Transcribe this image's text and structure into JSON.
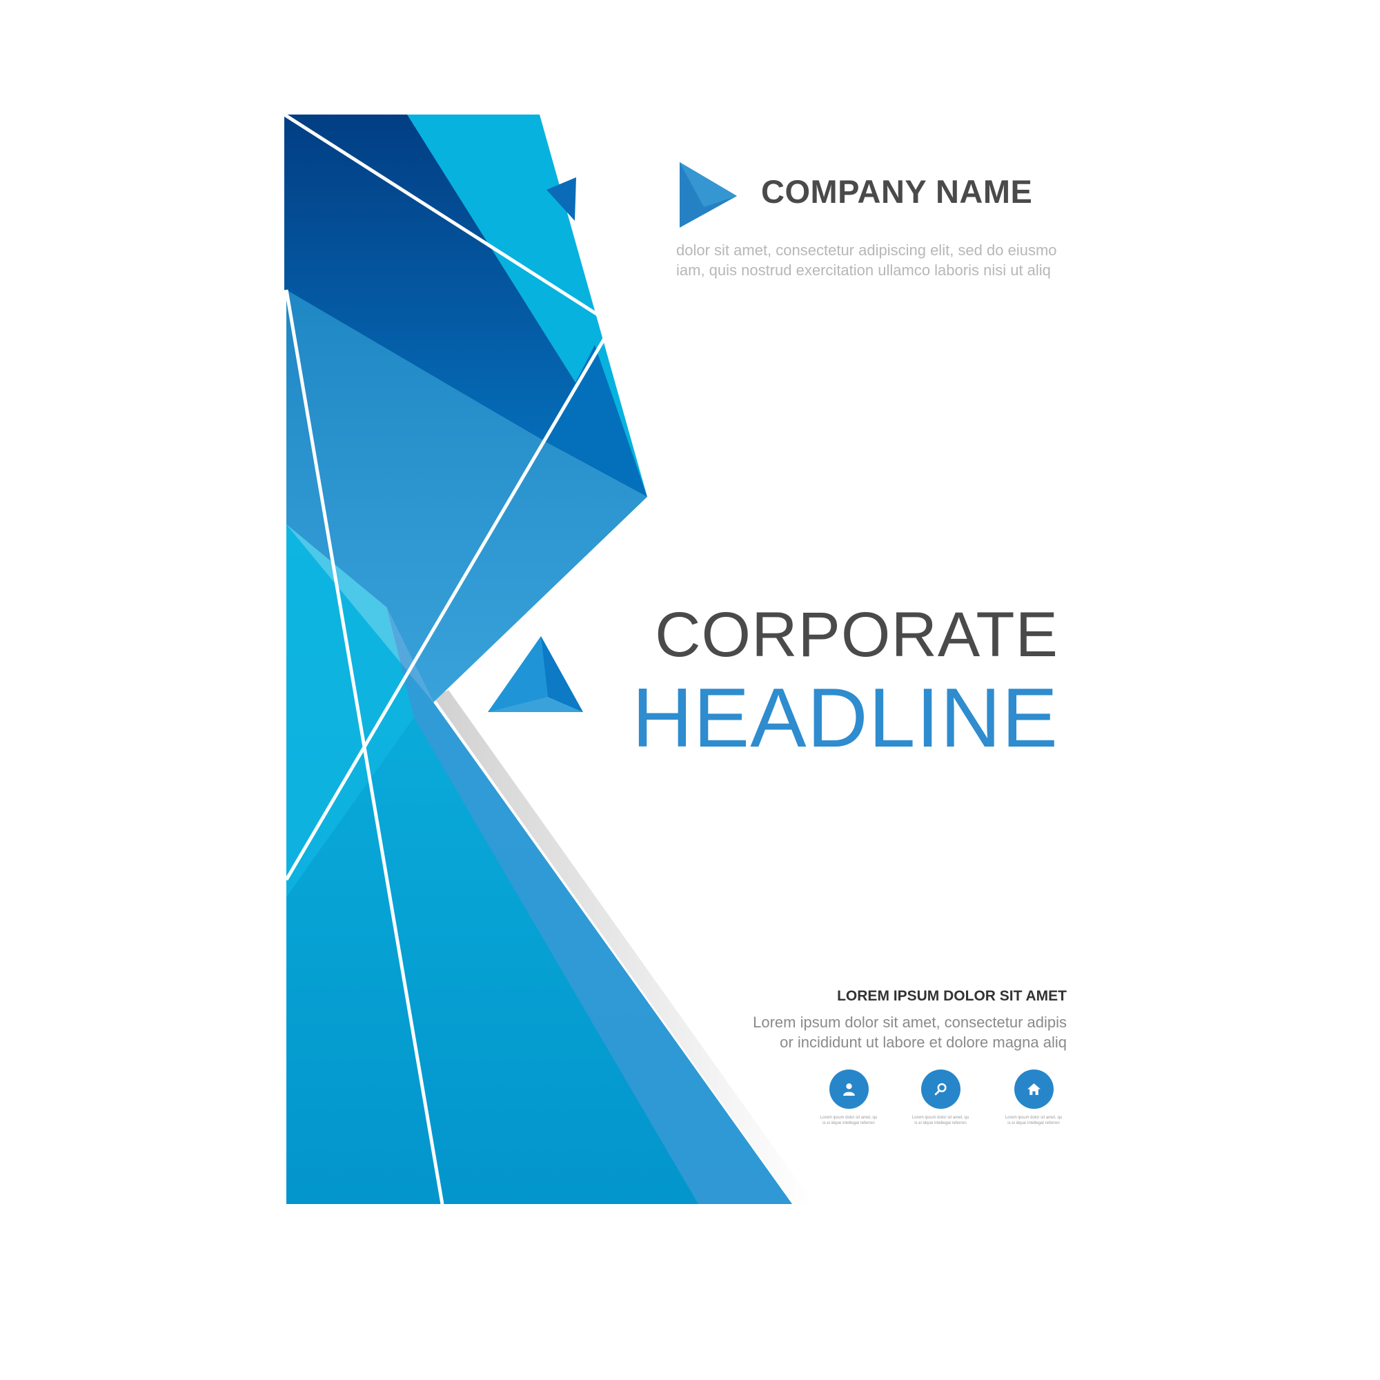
{
  "company": {
    "name": "COMPANY NAME",
    "tagline_lines": [
      "dolor sit amet, consectetur adipiscing elit, sed do eiusmo",
      "iam, quis nostrud exercitation ullamco laboris nisi ut aliq"
    ]
  },
  "headline": {
    "line1": "CORPORATE",
    "line2": "HEADLINE"
  },
  "section": {
    "heading": "LOREM IPSUM DOLOR SIT AMET",
    "body_lines": [
      "Lorem ipsum dolor sit amet, consectetur adipis",
      "or incididunt ut labore et dolore magna aliq"
    ]
  },
  "features": [
    {
      "icon": "user-icon",
      "caption_lines": [
        "Lorem ipsum dolor sit amet, qu",
        "is ei idque intellegat referren"
      ]
    },
    {
      "icon": "search-icon",
      "caption_lines": [
        "Lorem ipsum dolor sit amet, qu",
        "is ei idque intellegat referren"
      ]
    },
    {
      "icon": "home-icon",
      "caption_lines": [
        "Lorem ipsum dolor sit amet, qu",
        "is ei idque intellegat referren"
      ]
    }
  ],
  "colors": {
    "accent_blue": "#2e8ccf",
    "dark_blue": "#024387",
    "cyan": "#08b2de",
    "text_dark": "#4a4a4a",
    "text_light": "#b7b7b7"
  }
}
